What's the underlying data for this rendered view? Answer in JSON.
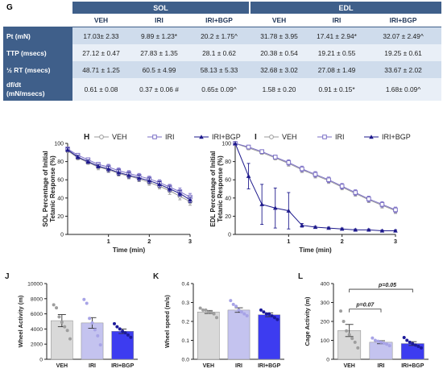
{
  "panel_labels": {
    "G": "G",
    "H": "H",
    "I": "I",
    "J": "J",
    "K": "K",
    "L": "L"
  },
  "table": {
    "groups": [
      "SOL",
      "EDL"
    ],
    "columns": [
      "VEH",
      "IRI",
      "IRI+BGP",
      "VEH",
      "IRI",
      "IRI+BGP"
    ],
    "rows": [
      {
        "label": "Pt (mN)",
        "cells": [
          "17.03± 2.33",
          "9.89 ± 1.23*",
          "20.2 ± 1.75^",
          "31.78 ± 3.95",
          "17.41 ± 2.94*",
          "32.07 ± 2.49^"
        ]
      },
      {
        "label": "TTP  (msecs)",
        "cells": [
          "27.12 ± 0.47",
          "27.83 ± 1.35",
          "28.1 ± 0.62",
          "20.38 ± 0.54",
          "19.21 ± 0.55",
          "19.25 ± 0.61"
        ]
      },
      {
        "label": "½ RT (msecs)",
        "cells": [
          "48.71 ± 1.25",
          "60.5 ± 4.99",
          "58.13 ± 5.33",
          "32.68 ± 3.02",
          "27.08 ± 1.49",
          "33.67 ± 2.02"
        ]
      },
      {
        "label_line1": "df/dt",
        "label_line2": "(mN/msecs)",
        "cells": [
          "0.61 ± 0.08",
          "0.37 ± 0.06 #",
          "0.65± 0.09^",
          "1.58 ± 0.20",
          "0.91 ± 0.15*",
          "1.68± 0.09^"
        ]
      }
    ]
  },
  "legend": [
    "VEH",
    "IRI",
    "IRI+BGP"
  ],
  "colors": {
    "veh": "#9a9a9a",
    "iri": "#7b6fc6",
    "bgp": "#1e1a8c",
    "bar_veh": "#d9d9d9",
    "bar_iri": "#c4c3ef",
    "bar_bgp": "#3d3cf0",
    "header": "#3f5f8a"
  },
  "chart_data": [
    {
      "type": "line",
      "panel": "H",
      "ylabel": "SOL Percentage of Initial Tetanic Response (%)",
      "xlabel": "Time (min)",
      "xticks": [
        1,
        2,
        3
      ],
      "yticks": [
        0,
        20,
        40,
        60,
        80,
        100
      ],
      "xlim": [
        0,
        3
      ],
      "ylim": [
        0,
        100
      ],
      "x": [
        0,
        0.25,
        0.5,
        0.75,
        1.0,
        1.25,
        1.5,
        1.75,
        2.0,
        2.25,
        2.5,
        2.75,
        3.0
      ],
      "series": [
        {
          "name": "VEH",
          "values": [
            92,
            84,
            79,
            74,
            71,
            67,
            64,
            61,
            57,
            53,
            48,
            42,
            36
          ],
          "err": [
            2,
            2,
            2,
            3,
            3,
            3,
            3,
            3,
            3,
            3,
            4,
            4,
            4
          ]
        },
        {
          "name": "IRI",
          "values": [
            94,
            87,
            82,
            77,
            74,
            70,
            67,
            64,
            61,
            57,
            52,
            47,
            41
          ],
          "err": [
            2,
            2,
            2,
            2,
            3,
            3,
            3,
            3,
            3,
            3,
            3,
            4,
            4
          ]
        },
        {
          "name": "IRI+BGP",
          "values": [
            93,
            85,
            80,
            75,
            72,
            68,
            65,
            62,
            59,
            55,
            50,
            45,
            38
          ],
          "err": [
            2,
            2,
            2,
            2,
            3,
            3,
            3,
            3,
            3,
            3,
            3,
            3,
            3
          ]
        }
      ]
    },
    {
      "type": "line",
      "panel": "I",
      "ylabel": "EDL Percentage of Initial Tetanic Response (%)",
      "xlabel": "Time (min)",
      "xticks": [
        1,
        2,
        3
      ],
      "yticks": [
        0,
        20,
        40,
        60,
        80,
        100
      ],
      "xlim": [
        0,
        3
      ],
      "ylim": [
        0,
        100
      ],
      "x": [
        0,
        0.25,
        0.5,
        0.75,
        1.0,
        1.25,
        1.5,
        1.75,
        2.0,
        2.25,
        2.5,
        2.75,
        3.0
      ],
      "series": [
        {
          "name": "VEH",
          "values": [
            100,
            95,
            90,
            84,
            78,
            71,
            65,
            59,
            52,
            45,
            38,
            32,
            26
          ],
          "err": [
            1,
            2,
            2,
            2,
            3,
            3,
            3,
            3,
            3,
            3,
            3,
            3,
            3
          ]
        },
        {
          "name": "IRI",
          "values": [
            100,
            96,
            91,
            85,
            79,
            72,
            66,
            60,
            53,
            46,
            39,
            33,
            27
          ],
          "err": [
            1,
            2,
            2,
            2,
            3,
            3,
            3,
            3,
            3,
            3,
            3,
            3,
            3
          ]
        },
        {
          "name": "IRI+BGP",
          "values": [
            100,
            64,
            33,
            29,
            26,
            10,
            8,
            7,
            6,
            5,
            5,
            4,
            4
          ],
          "err": [
            0,
            14,
            22,
            22,
            20,
            2,
            1,
            1,
            1,
            1,
            1,
            1,
            1
          ]
        }
      ]
    },
    {
      "type": "bar",
      "panel": "J",
      "ylabel": "Wheel Activity (m)",
      "categories": [
        "VEH",
        "IRI",
        "IRI+BGP"
      ],
      "values": [
        5100,
        4800,
        3700
      ],
      "err": [
        800,
        700,
        300
      ],
      "ylim": [
        0,
        10000
      ],
      "yticks": [
        0,
        2000,
        4000,
        6000,
        8000,
        10000
      ],
      "points": [
        [
          7200,
          6800,
          5600,
          4900,
          4300,
          3800,
          2700
        ],
        [
          7900,
          7400,
          5400,
          4800,
          3900,
          3100,
          1900
        ],
        [
          4700,
          4300,
          4000,
          3700,
          3500,
          3200,
          2900
        ]
      ]
    },
    {
      "type": "bar",
      "panel": "K",
      "ylabel": "Wheel speed (m/s)",
      "categories": [
        "VEH",
        "IRI",
        "IRI+BGP"
      ],
      "values": [
        0.25,
        0.26,
        0.235
      ],
      "err": [
        0.008,
        0.012,
        0.01
      ],
      "ylim": [
        0,
        0.4
      ],
      "yticks": [
        0.0,
        0.1,
        0.2,
        0.3,
        0.4
      ],
      "points": [
        [
          0.27,
          0.26,
          0.26,
          0.25,
          0.25,
          0.24,
          0.22
        ],
        [
          0.31,
          0.29,
          0.28,
          0.26,
          0.25,
          0.24,
          0.23
        ],
        [
          0.26,
          0.25,
          0.24,
          0.24,
          0.23,
          0.22,
          0.21
        ]
      ]
    },
    {
      "type": "bar",
      "panel": "L",
      "ylabel": "Cage Activity (m)",
      "categories": [
        "VEH",
        "IRI",
        "IRI+BGP"
      ],
      "values": [
        152,
        90,
        83
      ],
      "err": [
        32,
        8,
        10
      ],
      "ylim": [
        0,
        400
      ],
      "yticks": [
        0,
        100,
        200,
        300,
        400
      ],
      "points": [
        [
          255,
          200,
          150,
          130,
          110,
          90,
          60
        ],
        [
          112,
          100,
          95,
          90,
          85,
          80,
          72
        ],
        [
          115,
          100,
          90,
          82,
          75,
          68,
          60
        ]
      ],
      "annotations": [
        "p=0.07",
        "p=0.05"
      ]
    }
  ]
}
